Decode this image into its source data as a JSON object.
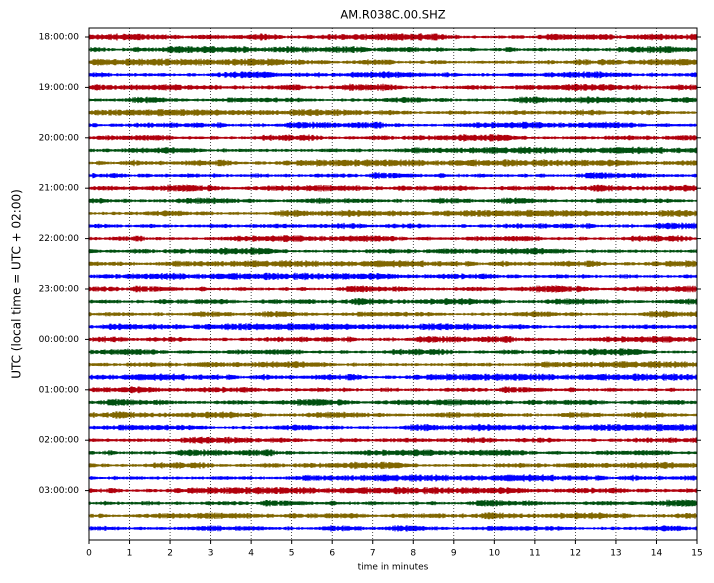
{
  "chart_data": {
    "type": "helicorder",
    "title": "AM.R038C.00.SHZ",
    "x_label": "time in minutes",
    "y_label": "UTC (local time = UTC + 02:00)",
    "xlim": [
      0,
      15
    ],
    "xticks": [
      0,
      1,
      2,
      3,
      4,
      5,
      6,
      7,
      8,
      9,
      10,
      11,
      12,
      13,
      14,
      15
    ],
    "grid": true,
    "colors": [
      "#b0000c",
      "#005010",
      "#806600",
      "#0000ff"
    ],
    "categories": [
      "18:00:00",
      null,
      null,
      null,
      "19:00:00",
      null,
      null,
      null,
      "20:00:00",
      null,
      null,
      null,
      "21:00:00",
      null,
      null,
      null,
      "22:00:00",
      null,
      null,
      null,
      "23:00:00",
      null,
      null,
      null,
      "00:00:00",
      null,
      null,
      null,
      "01:00:00",
      null,
      null,
      null,
      "02:00:00",
      null,
      null,
      null,
      "03:00:00",
      null,
      null,
      null
    ]
  }
}
